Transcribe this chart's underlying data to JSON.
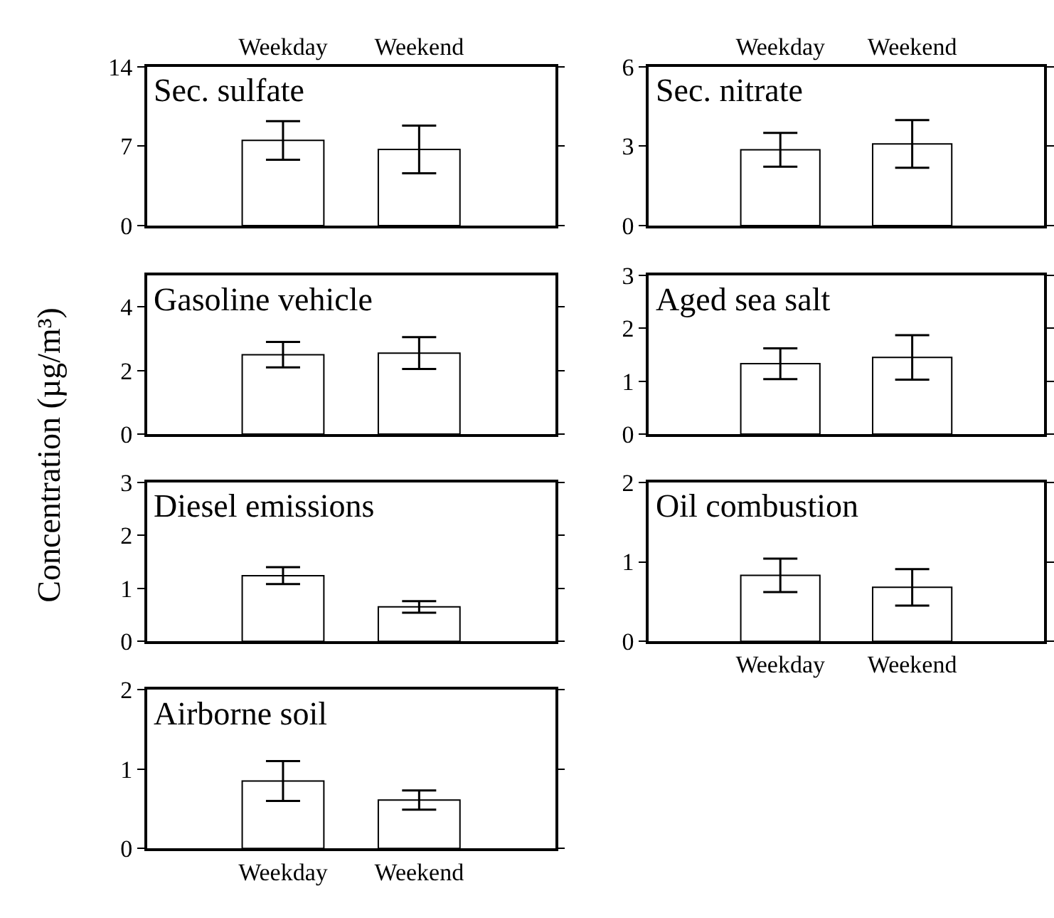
{
  "chart_data": [
    {
      "type": "bar",
      "title": "Sec. sulfate",
      "ylabel": "Concentration (µg/m³)",
      "categories": [
        "Weekday",
        "Weekend"
      ],
      "series": [
        {
          "color": "#ffffff",
          "values": [
            7.5,
            6.7
          ],
          "errors": [
            1.7,
            2.1
          ]
        }
      ],
      "ylim": [
        0,
        14
      ],
      "yticks": [
        0,
        7,
        14
      ]
    },
    {
      "type": "bar",
      "title": "Sec. nitrate",
      "categories": [
        "Weekday",
        "Weekend"
      ],
      "series": [
        {
          "color": "#ffffff",
          "values": [
            2.86,
            3.08
          ],
          "errors": [
            0.64,
            0.9
          ]
        }
      ],
      "ylim": [
        0,
        6
      ],
      "yticks": [
        0,
        3,
        6
      ]
    },
    {
      "type": "bar",
      "title": "Gasoline vehicle",
      "categories": [
        null,
        null
      ],
      "series": [
        {
          "color": "#ffffff",
          "values": [
            2.5,
            2.55
          ],
          "errors": [
            0.4,
            0.5
          ]
        }
      ],
      "ylim": [
        0,
        5
      ],
      "yticks": [
        0,
        2,
        4
      ]
    },
    {
      "type": "bar",
      "title": "Aged sea salt",
      "categories": [
        null,
        null
      ],
      "series": [
        {
          "color": "#ffffff",
          "values": [
            1.33,
            1.45
          ],
          "errors": [
            0.29,
            0.42
          ]
        }
      ],
      "ylim": [
        0,
        3
      ],
      "yticks": [
        0,
        1,
        2,
        3
      ]
    },
    {
      "type": "bar",
      "title": "Diesel emissions",
      "categories": [
        null,
        null
      ],
      "series": [
        {
          "color": "#ffffff",
          "values": [
            1.24,
            0.65
          ],
          "errors": [
            0.16,
            0.11
          ]
        }
      ],
      "ylim": [
        0,
        3
      ],
      "yticks": [
        0,
        1,
        2,
        3
      ]
    },
    {
      "type": "bar",
      "title": "Oil combustion",
      "categories": [
        "Weekday",
        "Weekend"
      ],
      "series": [
        {
          "color": "#ffffff",
          "values": [
            0.83,
            0.68
          ],
          "errors": [
            0.21,
            0.23
          ]
        }
      ],
      "ylim": [
        0,
        2
      ],
      "yticks": [
        0,
        1,
        2
      ]
    },
    {
      "type": "bar",
      "title": "Airborne soil",
      "categories": [
        "Weekday",
        "Weekend"
      ],
      "series": [
        {
          "color": "#ffffff",
          "values": [
            0.85,
            0.61
          ],
          "errors": [
            0.25,
            0.12
          ]
        }
      ],
      "ylim": [
        0,
        2
      ],
      "yticks": [
        0,
        1,
        2
      ]
    }
  ]
}
